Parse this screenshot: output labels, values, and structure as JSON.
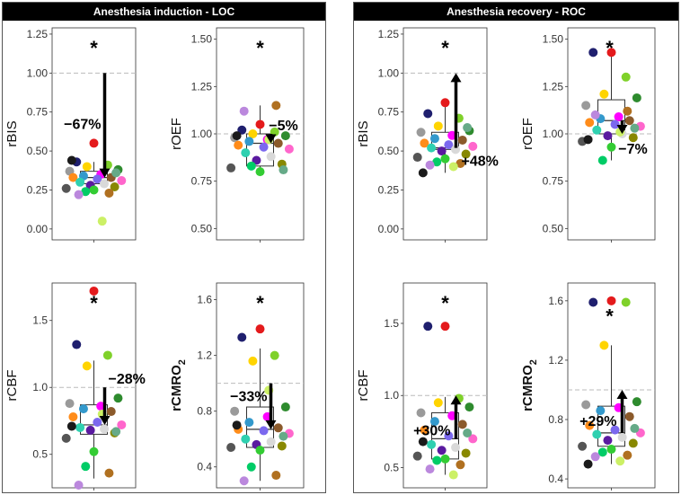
{
  "panels": [
    {
      "title": "Anesthesia induction - LOC"
    },
    {
      "title": "Anesthesia recovery - ROC"
    }
  ],
  "palette": [
    "#e41a1c",
    "#1f1f6e",
    "#7fd12a",
    "#ffd400",
    "#2e8b2e",
    "#9a9a9a",
    "#ff00ff",
    "#3399cc",
    "#8b5a2b",
    "#ff8c1a",
    "#7b68ee",
    "#ff66cc",
    "#2fd0b0",
    "#d9d9d9",
    "#5a1aa0",
    "#888800",
    "#555555",
    "#33cc33",
    "#00cc66",
    "#b07020",
    "#bb88dd",
    "#ccf066",
    "#1a1a1a",
    "#66aa88"
  ],
  "chart_data": [
    {
      "id": "loc-rbis",
      "type": "box-scatter",
      "ylabel": "rBIS",
      "yticks": [
        "0.00",
        "0.25",
        "0.50",
        "0.75",
        "1.00",
        "1.25"
      ],
      "ylim": [
        -0.07,
        1.29
      ],
      "reference_line": 1.0,
      "box": {
        "q1": 0.29,
        "median": 0.33,
        "q3": 0.37,
        "whisker_low": 0.23,
        "whisker_high": 0.43
      },
      "points": [
        0.55,
        0.43,
        0.41,
        0.4,
        0.38,
        0.37,
        0.35,
        0.34,
        0.33,
        0.33,
        0.32,
        0.31,
        0.3,
        0.29,
        0.28,
        0.27,
        0.26,
        0.25,
        0.24,
        0.23,
        0.22,
        0.05,
        0.44,
        0.36
      ],
      "significance": "*",
      "arrow": {
        "from": 1.0,
        "to": 0.33,
        "direction": "down",
        "label": "−67%"
      }
    },
    {
      "id": "loc-roef",
      "type": "box-scatter",
      "ylabel": "rOEF",
      "yticks": [
        "0.50",
        "0.75",
        "1.00",
        "1.25",
        "1.50"
      ],
      "ylim": [
        0.44,
        1.56
      ],
      "reference_line": 1.0,
      "box": {
        "q1": 0.83,
        "median": 0.95,
        "q3": 1.0,
        "whisker_low": 0.8,
        "whisker_high": 1.15
      },
      "points": [
        1.05,
        1.02,
        1.01,
        1.0,
        0.99,
        0.98,
        0.97,
        0.96,
        0.95,
        0.94,
        0.93,
        0.92,
        0.9,
        0.88,
        0.86,
        0.84,
        0.82,
        0.8,
        0.83,
        1.15,
        1.12,
        0.97,
        0.99,
        0.81
      ],
      "significance": "*",
      "arrow": {
        "from": 1.0,
        "to": 0.95,
        "direction": "down",
        "label": "−5%"
      }
    },
    {
      "id": "loc-rcbf",
      "type": "box-scatter",
      "ylabel": "rCBF",
      "yticks": [
        "0.5",
        "1.0",
        "1.5"
      ],
      "ylim": [
        0.25,
        1.78
      ],
      "reference_line": 1.0,
      "box": {
        "q1": 0.65,
        "median": 0.72,
        "q3": 0.87,
        "whisker_low": 0.32,
        "whisker_high": 1.2
      },
      "points": [
        1.72,
        1.32,
        1.24,
        1.16,
        0.92,
        0.88,
        0.86,
        0.84,
        0.82,
        0.78,
        0.74,
        0.72,
        0.7,
        0.69,
        0.68,
        0.66,
        0.62,
        0.52,
        0.41,
        0.36,
        0.27,
        0.8,
        0.71,
        0.67
      ],
      "significance": "*",
      "arrow": {
        "from": 1.0,
        "to": 0.72,
        "direction": "down",
        "label": "−28%"
      }
    },
    {
      "id": "loc-rcmro2",
      "type": "box-scatter",
      "ylabel": "rCMRO",
      "ylabel_sub": "2",
      "yticks": [
        "0.4",
        "0.8",
        "1.2",
        "1.6"
      ],
      "ylim": [
        0.25,
        1.72
      ],
      "reference_line": 1.0,
      "box": {
        "q1": 0.54,
        "median": 0.67,
        "q3": 0.83,
        "whisker_low": 0.3,
        "whisker_high": 1.25
      },
      "points": [
        1.39,
        1.33,
        1.2,
        1.16,
        0.83,
        0.8,
        0.76,
        0.72,
        0.68,
        0.67,
        0.66,
        0.64,
        0.6,
        0.58,
        0.56,
        0.55,
        0.54,
        0.52,
        0.4,
        0.34,
        0.3,
        0.95,
        0.7,
        0.62
      ],
      "significance": "*",
      "arrow": {
        "from": 1.0,
        "to": 0.67,
        "direction": "down",
        "label": "−33%"
      }
    },
    {
      "id": "roc-rbis",
      "type": "box-scatter",
      "ylabel": "rBIS",
      "yticks": [
        "0.00",
        "0.25",
        "0.50",
        "0.75",
        "1.00",
        "1.25"
      ],
      "ylim": [
        -0.07,
        1.29
      ],
      "reference_line": 1.0,
      "box": {
        "q1": 0.51,
        "median": 0.52,
        "q3": 0.62,
        "whisker_low": 0.36,
        "whisker_high": 0.82
      },
      "points": [
        0.81,
        0.74,
        0.71,
        0.66,
        0.63,
        0.62,
        0.6,
        0.58,
        0.57,
        0.55,
        0.54,
        0.53,
        0.52,
        0.51,
        0.5,
        0.48,
        0.46,
        0.45,
        0.43,
        0.42,
        0.41,
        0.4,
        0.36,
        0.65
      ],
      "significance": "*",
      "arrow": {
        "from": 0.52,
        "to": 1.0,
        "direction": "up",
        "label": "+48%"
      }
    },
    {
      "id": "roc-roef",
      "type": "box-scatter",
      "ylabel": "rOEF",
      "yticks": [
        "0.50",
        "0.75",
        "1.00",
        "1.25",
        "1.50"
      ],
      "ylim": [
        0.44,
        1.56
      ],
      "reference_line": 1.0,
      "box": {
        "q1": 1.0,
        "median": 1.07,
        "q3": 1.18,
        "whisker_low": 0.86,
        "whisker_high": 1.43
      },
      "points": [
        1.43,
        1.43,
        1.3,
        1.21,
        1.19,
        1.15,
        1.09,
        1.08,
        1.07,
        1.06,
        1.05,
        1.04,
        1.02,
        1.0,
        0.99,
        0.98,
        0.96,
        0.93,
        0.86,
        1.12,
        1.1,
        1.01,
        0.97,
        1.03
      ],
      "significance": "*",
      "arrow": {
        "from": 1.07,
        "to": 1.0,
        "direction": "down",
        "label": "−7%"
      }
    },
    {
      "id": "roc-rcbf",
      "type": "box-scatter",
      "ylabel": "rCBF",
      "yticks": [
        "0.5",
        "1.0",
        "1.5"
      ],
      "ylim": [
        0.36,
        1.78
      ],
      "reference_line": 1.0,
      "box": {
        "q1": 0.56,
        "median": 0.7,
        "q3": 0.88,
        "whisker_low": 0.45,
        "whisker_high": 0.99
      },
      "points": [
        1.48,
        1.48,
        0.98,
        0.95,
        0.92,
        0.88,
        0.86,
        0.82,
        0.8,
        0.76,
        0.72,
        0.7,
        0.66,
        0.64,
        0.62,
        0.6,
        0.58,
        0.56,
        0.55,
        0.52,
        0.49,
        0.45,
        0.68,
        0.74
      ],
      "significance": "*",
      "arrow": {
        "from": 0.7,
        "to": 1.0,
        "direction": "up",
        "label": "+30%"
      }
    },
    {
      "id": "roc-rcmro2",
      "type": "box-scatter",
      "ylabel": "rCMRO",
      "ylabel_sub": "2",
      "yticks": [
        "0.4",
        "0.8",
        "1.2",
        "1.6"
      ],
      "ylim": [
        0.34,
        1.72
      ],
      "reference_line": 1.0,
      "box": {
        "q1": 0.62,
        "median": 0.71,
        "q3": 0.89,
        "whisker_low": 0.5,
        "whisker_high": 1.3
      },
      "points": [
        1.6,
        1.59,
        1.59,
        1.3,
        0.92,
        0.9,
        0.88,
        0.86,
        0.82,
        0.76,
        0.73,
        0.71,
        0.7,
        0.68,
        0.66,
        0.64,
        0.62,
        0.6,
        0.58,
        0.56,
        0.55,
        0.52,
        0.5,
        0.74
      ],
      "significance": "*",
      "arrow": {
        "from": 0.71,
        "to": 1.0,
        "direction": "up",
        "label": "+29%"
      }
    }
  ]
}
